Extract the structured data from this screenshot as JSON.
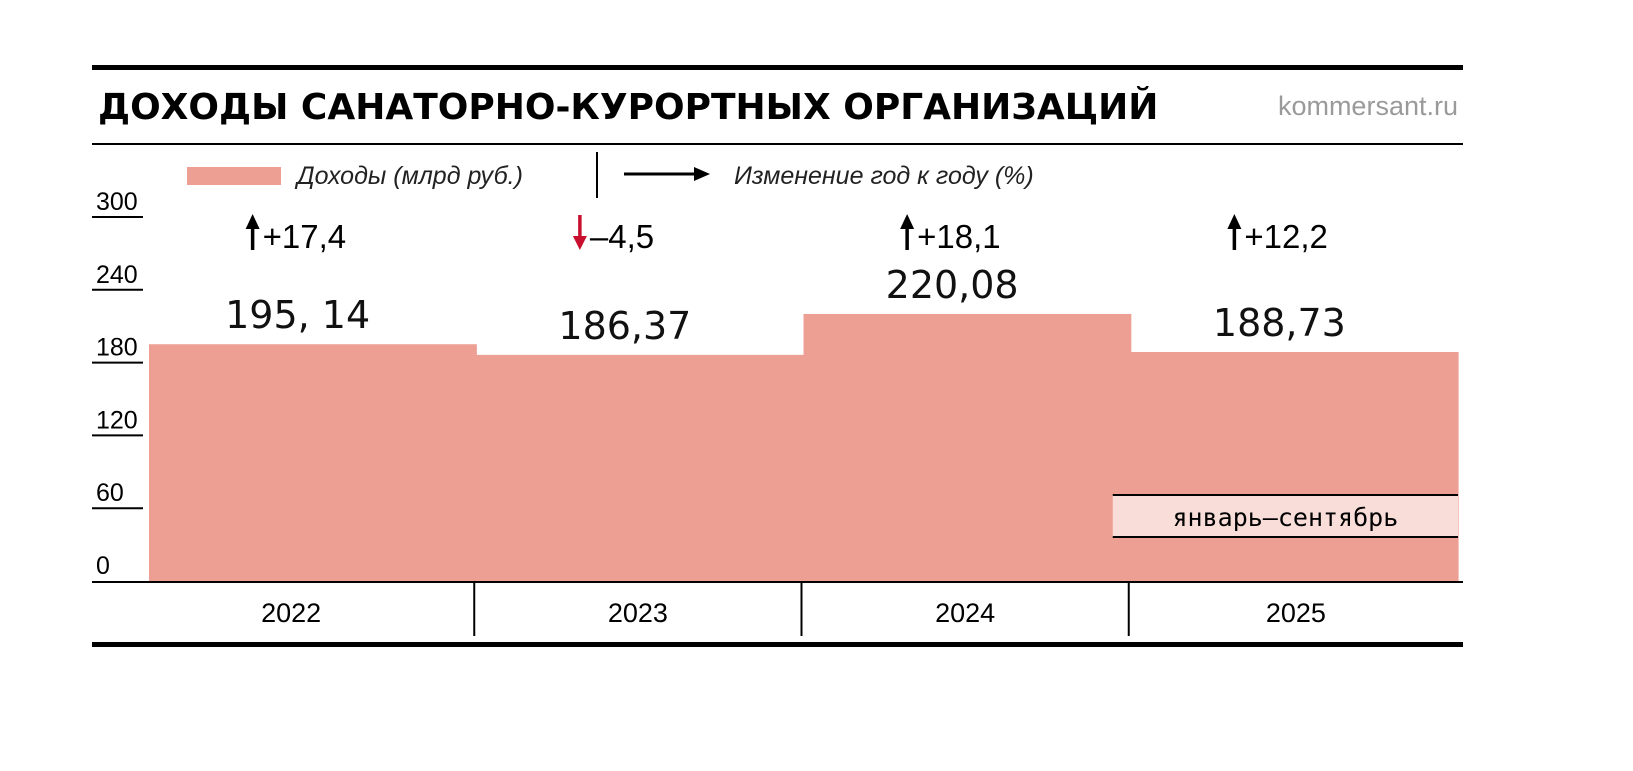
{
  "header": {
    "title": "ДОХОДЫ САНАТОРНО-КУРОРТНЫХ ОРГАНИЗАЦИЙ",
    "source": "kommersant.ru"
  },
  "legend": {
    "bars_label": "Доходы (млрд руб.)",
    "change_label": "Изменение год к году (%)"
  },
  "colors": {
    "bar": "#ee9f94",
    "note_bg": "#f8ddd9",
    "up_arrow": "#000000",
    "down_arrow": "#c8102e",
    "rule": "#000000"
  },
  "chart_data": {
    "type": "bar",
    "title": "ДОХОДЫ САНАТОРНО-КУРОРТНЫХ ОРГАНИЗАЦИЙ",
    "categories": [
      "2022",
      "2023",
      "2024",
      "2025"
    ],
    "series": [
      {
        "name": "Доходы (млрд руб.)",
        "values": [
          195.14,
          186.37,
          220.08,
          188.73
        ],
        "labels": [
          "195, 14",
          "186,37",
          "220,08",
          "188,73"
        ]
      }
    ],
    "changes": [
      {
        "value": 17.4,
        "label": "+17,4",
        "direction": "up"
      },
      {
        "value": -4.5,
        "label": "–4,5",
        "direction": "down"
      },
      {
        "value": 18.1,
        "label": "+18,1",
        "direction": "up"
      },
      {
        "value": 12.2,
        "label": "+12,2",
        "direction": "up"
      }
    ],
    "y_ticks": [
      {
        "value": 0,
        "label": "0"
      },
      {
        "value": 60,
        "label": "60"
      },
      {
        "value": 120,
        "label": "120"
      },
      {
        "value": 180,
        "label": "180"
      },
      {
        "value": 240,
        "label": "240"
      },
      {
        "value": 300,
        "label": "300"
      }
    ],
    "ylim": [
      0,
      300
    ],
    "note": {
      "category": "2025",
      "text": "январь–сентябрь"
    },
    "grid": false,
    "legend_position": "top"
  }
}
